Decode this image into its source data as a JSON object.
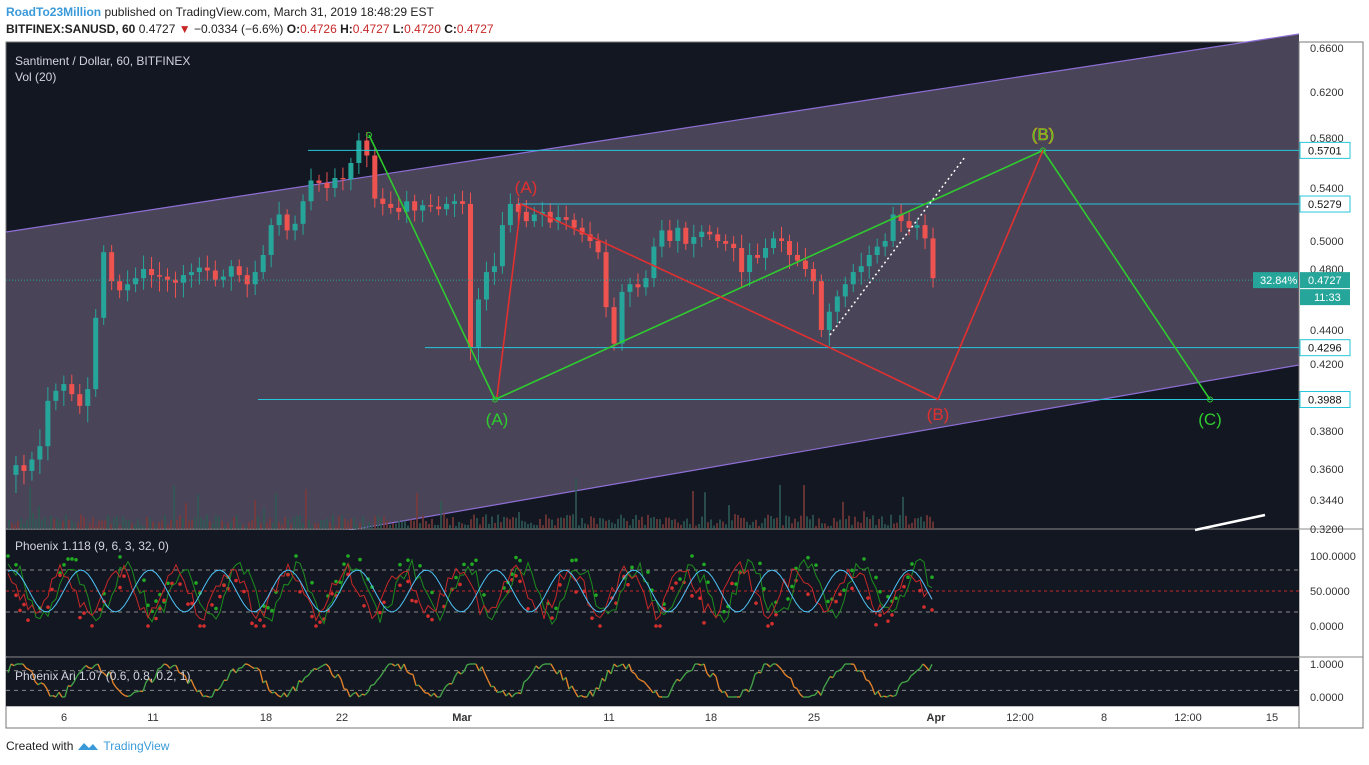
{
  "header": {
    "user": "RoadTo23Million",
    "published": "published on TradingView.com, March 31, 2019 18:48:29 EST",
    "symbol": "BITFINEX:SANUSD, 60",
    "last": "0.4727",
    "change": "−0.0334 (−6.6%)",
    "o_label": "O:",
    "o": "0.4726",
    "h_label": "H:",
    "h": "0.4727",
    "l_label": "L:",
    "l": "0.4720",
    "c_label": "C:",
    "c": "0.4727"
  },
  "footer": {
    "created": "Created with",
    "brand": "TradingView"
  },
  "chart_data": {
    "type": "line",
    "title": "Santiment / Dollar, 60, BITFINEX",
    "subtitle": "Vol (20)",
    "price_axis": [
      "0.6600",
      "0.6200",
      "0.5800",
      "0.5400",
      "0.5000",
      "0.4800",
      "0.4400",
      "0.4200",
      "0.3800",
      "0.3600",
      "0.3440",
      "0.3200"
    ],
    "x_ticks": [
      "6",
      "11",
      "18",
      "22",
      "Mar",
      "11",
      "18",
      "25",
      "Apr",
      "12:00",
      "8",
      "12:00",
      "15"
    ],
    "levels": [
      {
        "value": 0.5701,
        "label": "0.5701"
      },
      {
        "value": 0.5279,
        "label": "0.5279"
      },
      {
        "value": 0.4296,
        "label": "0.4296"
      },
      {
        "value": 0.3988,
        "label": "0.3988"
      }
    ],
    "last_price": {
      "label": "0.4727",
      "pct": "32.84%",
      "countdown": "11:33"
    },
    "wave_labels": {
      "green": [
        "(A)",
        "(B)",
        "(C)"
      ],
      "red": [
        "(A)",
        "(B)"
      ]
    },
    "colors": {
      "green": "#2ecc2e",
      "red": "#e23030",
      "channel": "#7e57c2",
      "level": "#26c6da",
      "up": "#26a69a",
      "down": "#ef5350"
    },
    "price_series": [
      0.357,
      0.362,
      0.359,
      0.365,
      0.372,
      0.398,
      0.404,
      0.408,
      0.402,
      0.395,
      0.405,
      0.448,
      0.492,
      0.472,
      0.466,
      0.47,
      0.474,
      0.48,
      0.476,
      0.475,
      0.473,
      0.471,
      0.476,
      0.478,
      0.481,
      0.479,
      0.473,
      0.475,
      0.482,
      0.476,
      0.47,
      0.478,
      0.49,
      0.512,
      0.52,
      0.508,
      0.513,
      0.53,
      0.546,
      0.544,
      0.54,
      0.548,
      0.547,
      0.56,
      0.578,
      0.566,
      0.532,
      0.528,
      0.525,
      0.522,
      0.53,
      0.523,
      0.527,
      0.526,
      0.524,
      0.528,
      0.53,
      0.528,
      0.43,
      0.46,
      0.478,
      0.482,
      0.512,
      0.528,
      0.522,
      0.515,
      0.52,
      0.522,
      0.514,
      0.518,
      0.516,
      0.51,
      0.505,
      0.5,
      0.492,
      0.455,
      0.432,
      0.465,
      0.47,
      0.468,
      0.474,
      0.496,
      0.508,
      0.5,
      0.51,
      0.498,
      0.503,
      0.507,
      0.505,
      0.5,
      0.498,
      0.495,
      0.478,
      0.49,
      0.488,
      0.495,
      0.502,
      0.5,
      0.49,
      0.486,
      0.48,
      0.472,
      0.44,
      0.452,
      0.462,
      0.47,
      0.478,
      0.482,
      0.49,
      0.496,
      0.5,
      0.52,
      0.515,
      0.51,
      0.512,
      0.502,
      0.474
    ],
    "indicators": [
      {
        "name": "Phoenix 1.118 (9, 6, 3, 32, 0)",
        "axis": [
          "100.0000",
          "50.0000",
          "0.0000"
        ]
      },
      {
        "name": "Phoenix Ari 1.07 (0.6, 0.8, 0.2, 1)",
        "axis": [
          "1.0000",
          "0.0000"
        ]
      }
    ]
  }
}
